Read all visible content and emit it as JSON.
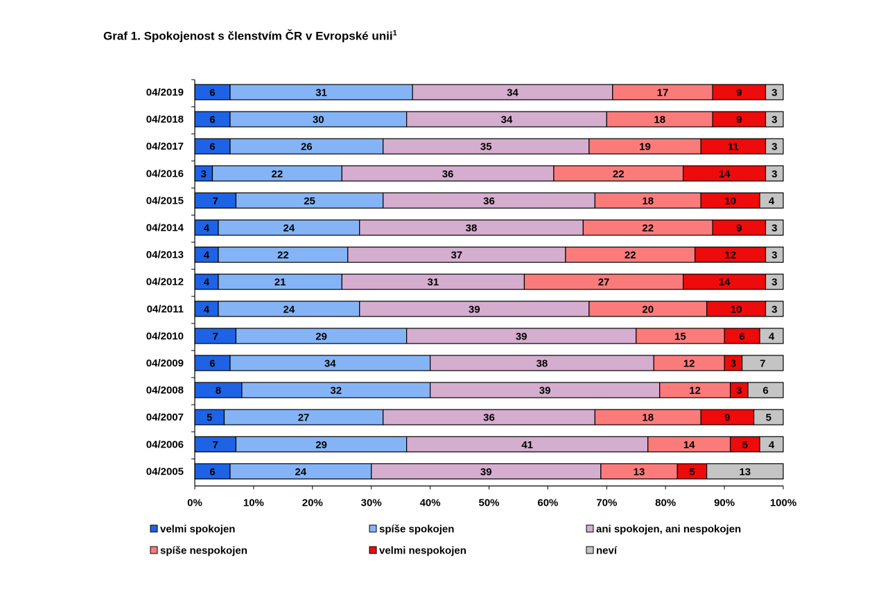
{
  "title": "Graf 1. Spokojenost s členstvím ČR v Evropské unii",
  "title_footnote": "1",
  "chart_data": {
    "type": "bar",
    "orientation": "horizontal",
    "stacked": true,
    "stack_mode": "percent",
    "categories": [
      "04/2019",
      "04/2018",
      "04/2017",
      "04/2016",
      "04/2015",
      "04/2014",
      "04/2013",
      "04/2012",
      "04/2011",
      "04/2010",
      "04/2009",
      "04/2008",
      "04/2007",
      "04/2006",
      "04/2005"
    ],
    "series": [
      {
        "name": "velmi spokojen",
        "color": "#1e63e6",
        "values": [
          6,
          6,
          6,
          3,
          7,
          4,
          4,
          4,
          4,
          7,
          6,
          8,
          5,
          7,
          6
        ]
      },
      {
        "name": "spíše spokojen",
        "color": "#85b4f6",
        "values": [
          31,
          30,
          26,
          22,
          25,
          24,
          22,
          21,
          24,
          29,
          34,
          32,
          27,
          29,
          24
        ]
      },
      {
        "name": "ani spokojen, ani nespokojen",
        "color": "#d4adcf",
        "values": [
          34,
          34,
          35,
          36,
          36,
          38,
          37,
          31,
          39,
          39,
          38,
          39,
          36,
          41,
          39
        ]
      },
      {
        "name": "spíše nespokojen",
        "color": "#fb7b7b",
        "values": [
          17,
          18,
          19,
          22,
          18,
          22,
          22,
          27,
          20,
          15,
          12,
          12,
          18,
          14,
          13
        ]
      },
      {
        "name": "velmi nespokojen",
        "color": "#ee0b0b",
        "values": [
          9,
          9,
          11,
          14,
          10,
          9,
          12,
          14,
          10,
          6,
          3,
          3,
          9,
          5,
          5
        ]
      },
      {
        "name": "neví",
        "color": "#c4c4c4",
        "values": [
          3,
          3,
          3,
          3,
          4,
          3,
          3,
          3,
          3,
          4,
          7,
          6,
          5,
          4,
          13
        ]
      }
    ],
    "xlim": [
      0,
      100
    ],
    "x_ticks": [
      "0%",
      "10%",
      "20%",
      "30%",
      "40%",
      "50%",
      "60%",
      "70%",
      "80%",
      "90%",
      "100%"
    ],
    "grid": false,
    "legend_position": "bottom"
  }
}
